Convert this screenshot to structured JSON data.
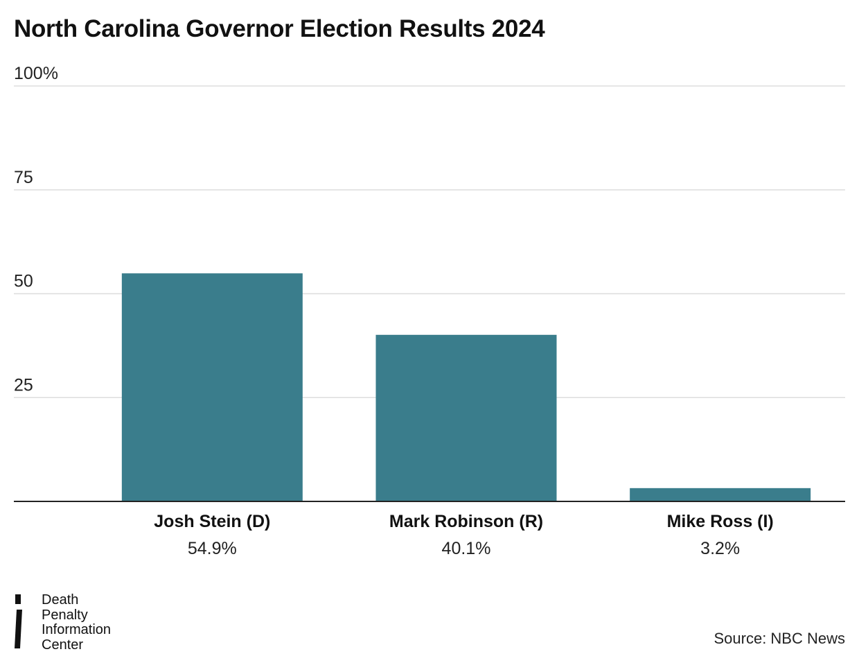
{
  "chart_data": {
    "type": "bar",
    "title": "North Carolina Governor Election Results 2024",
    "categories": [
      "Josh Stein (D)",
      "Mark Robinson (R)",
      "Mike Ross (I)"
    ],
    "values": [
      54.9,
      40.1,
      3.2
    ],
    "value_labels": [
      "54.9%",
      "40.1%",
      "3.2%"
    ],
    "ylim": [
      0,
      100
    ],
    "yticks": [
      25,
      50,
      75,
      100
    ],
    "ytick_labels": [
      "25",
      "50",
      "75",
      "100%"
    ],
    "xlabel": "",
    "ylabel": "",
    "grid": true,
    "bar_color": "#3a7d8c",
    "grid_color": "#dddddd",
    "axis_color": "#222222"
  },
  "branding": {
    "logo_lines": [
      "Death",
      "Penalty",
      "Information",
      "Center"
    ]
  },
  "source": "Source: NBC News"
}
